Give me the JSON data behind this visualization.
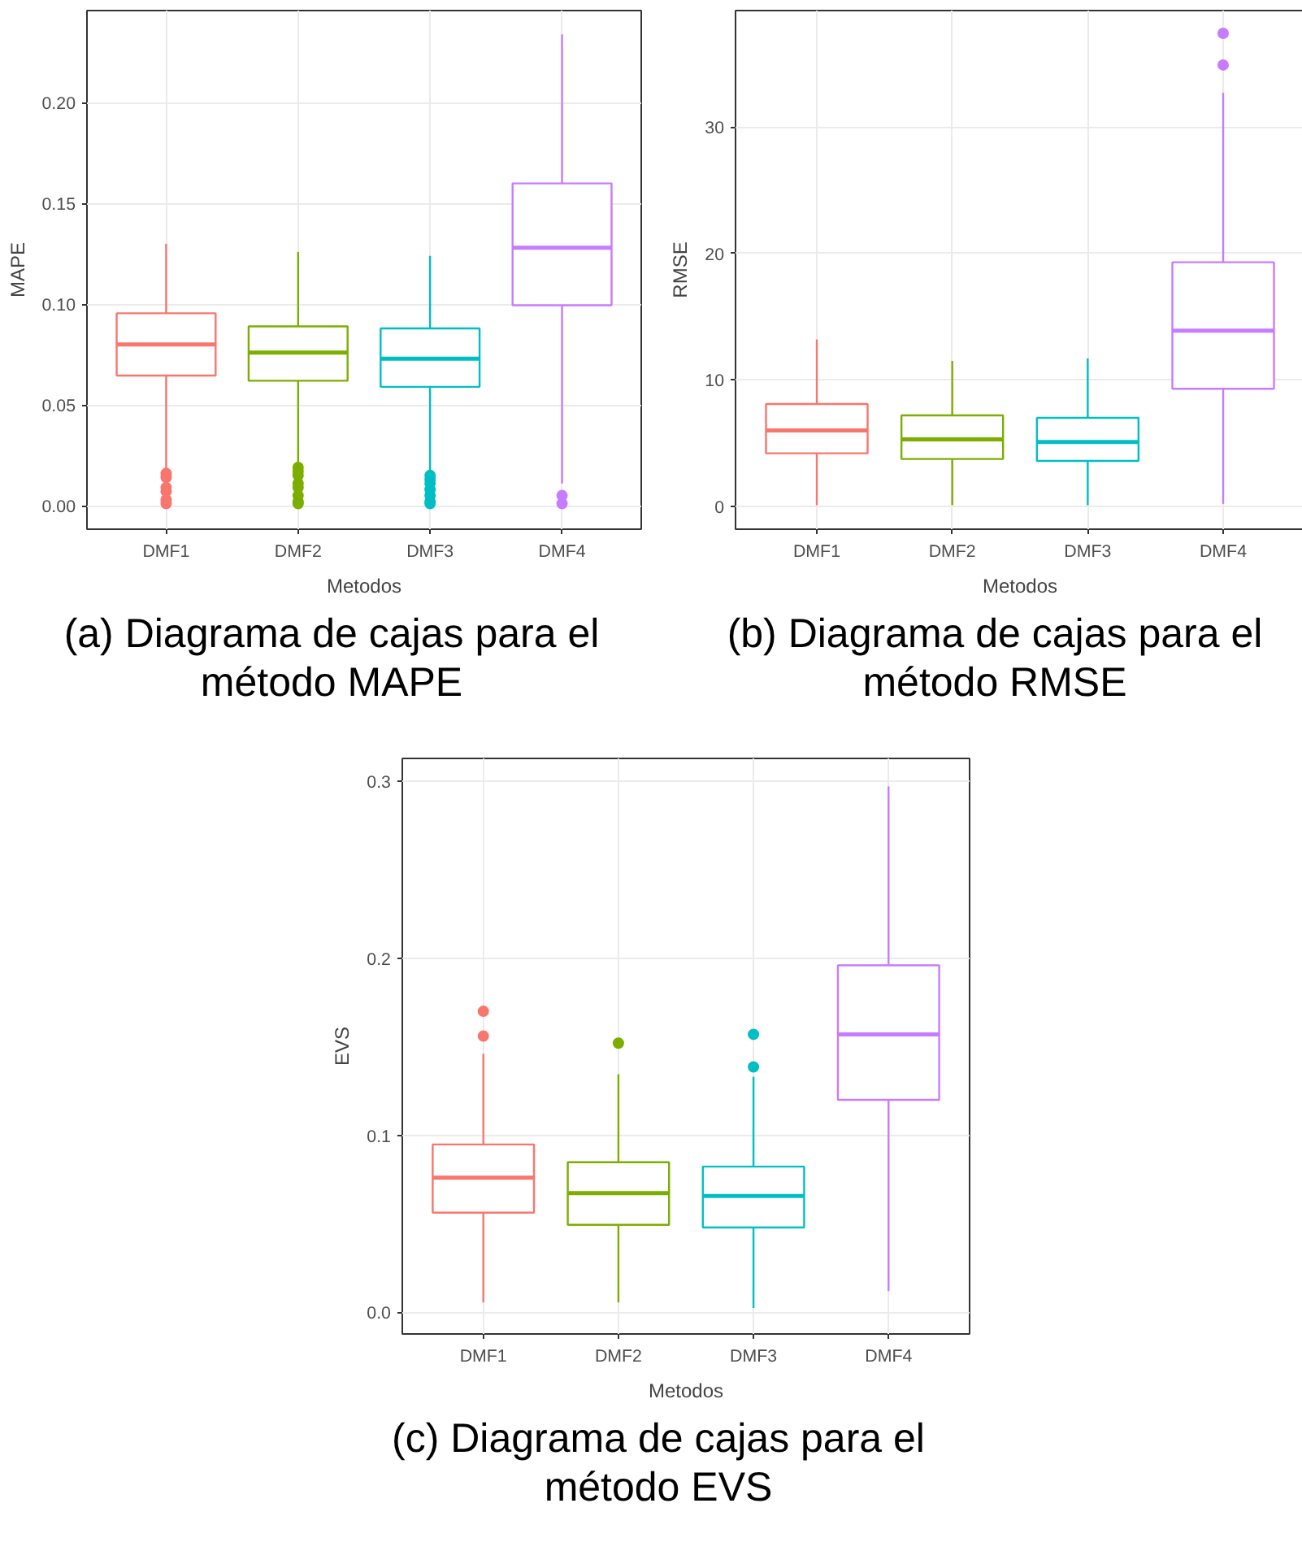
{
  "chart_data": [
    {
      "type": "box",
      "ylabel": "MAPE",
      "xlabel": "Metodos",
      "categories": [
        "DMF1",
        "DMF2",
        "DMF3",
        "DMF4"
      ],
      "colors": [
        "#f8766d",
        "#7cae00",
        "#00bfc4",
        "#c77cff"
      ],
      "boxes": [
        {
          "low": 0.018,
          "q1": 0.0646,
          "median": 0.08,
          "q3": 0.0955,
          "high": 0.13,
          "outliers": [
            0.016,
            0.014,
            0.009,
            0.007,
            0.003,
            0.001
          ]
        },
        {
          "low": 0.02,
          "q1": 0.062,
          "median": 0.076,
          "q3": 0.089,
          "high": 0.126,
          "outliers": [
            0.019,
            0.017,
            0.015,
            0.011,
            0.009,
            0.005,
            0.002,
            0.001
          ]
        },
        {
          "low": 0.0175,
          "q1": 0.059,
          "median": 0.073,
          "q3": 0.088,
          "high": 0.124,
          "outliers": [
            0.015,
            0.013,
            0.011,
            0.008,
            0.005,
            0.002,
            0.001
          ]
        },
        {
          "low": 0.011,
          "q1": 0.0995,
          "median": 0.128,
          "q3": 0.16,
          "high": 0.234,
          "outliers": [
            0.005,
            0.001
          ]
        }
      ],
      "ylim": [
        -0.0117,
        0.2458
      ],
      "yticks": [
        {
          "value": 0,
          "label": "0.00"
        },
        0.05,
        {
          "value": 0.1,
          "label": "0.10"
        },
        0.15,
        {
          "value": 0.2,
          "label": "0.20"
        }
      ],
      "grid": true,
      "annotations": [
        "(a) Diagrama de cajas para el método MAPE"
      ]
    },
    {
      "type": "box",
      "ylabel": "RMSE",
      "xlabel": "Metodos",
      "categories": [
        "DMF1",
        "DMF2",
        "DMF3",
        "DMF4"
      ],
      "colors": [
        "#f8766d",
        "#7cae00",
        "#00bfc4",
        "#c77cff"
      ],
      "boxes": [
        {
          "low": 0.1,
          "q1": 4.2,
          "median": 6.0,
          "q3": 8.1,
          "high": 13.2
        },
        {
          "low": 0.1,
          "q1": 3.75,
          "median": 5.3,
          "q3": 7.2,
          "high": 11.5
        },
        {
          "low": 0.1,
          "q1": 3.6,
          "median": 5.1,
          "q3": 7.0,
          "high": 11.7
        },
        {
          "low": 0.2,
          "q1": 9.3,
          "median": 13.9,
          "q3": 19.3,
          "high": 32.7,
          "outliers": [
            37.4,
            34.9
          ]
        }
      ],
      "ylim": [
        -1.8,
        39.2
      ],
      "yticks": [
        0,
        10,
        20,
        30
      ],
      "grid": true,
      "annotations": [
        "(b) Diagrama de cajas para el método RMSE"
      ]
    },
    {
      "type": "box",
      "ylabel": "EVS",
      "xlabel": "Metodos",
      "categories": [
        "DMF1",
        "DMF2",
        "DMF3",
        "DMF4"
      ],
      "colors": [
        "#f8766d",
        "#7cae00",
        "#00bfc4",
        "#c77cff"
      ],
      "boxes": [
        {
          "low": 0.0056,
          "q1": 0.0563,
          "median": 0.076,
          "q3": 0.0948,
          "high": 0.146,
          "outliers": [
            0.17,
            0.156
          ]
        },
        {
          "low": 0.0056,
          "q1": 0.0494,
          "median": 0.0673,
          "q3": 0.0848,
          "high": 0.1345,
          "outliers": [
            0.152
          ]
        },
        {
          "low": 0.0025,
          "q1": 0.0479,
          "median": 0.0657,
          "q3": 0.0823,
          "high": 0.133,
          "outliers": [
            0.157,
            0.1386
          ]
        },
        {
          "low": 0.012,
          "q1": 0.12,
          "median": 0.157,
          "q3": 0.196,
          "high": 0.297
        }
      ],
      "ylim": [
        -0.0122,
        0.3128
      ],
      "yticks": [
        {
          "value": 0,
          "label": "0.0"
        },
        0.1,
        0.2,
        0.3
      ],
      "grid": true,
      "annotations": [
        "(c) Diagrama de cajas para el método EVS"
      ]
    }
  ]
}
